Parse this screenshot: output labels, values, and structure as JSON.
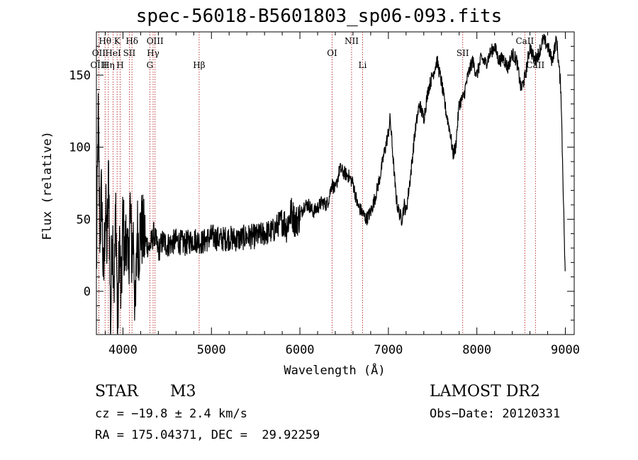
{
  "chart_data": {
    "type": "line",
    "title": "spec-56018-B5601803_sp06-093.fits",
    "xlabel": "Wavelength (Å)",
    "ylabel": "Flux (relative)",
    "xlim": [
      3700,
      9100
    ],
    "ylim": [
      -30,
      180
    ],
    "x_ticks": [
      4000,
      5000,
      6000,
      7000,
      8000,
      9000
    ],
    "y_ticks": [
      0,
      50,
      100,
      150
    ],
    "grid": false,
    "series": [
      {
        "x": [
          3700,
          3720,
          3740,
          3760,
          3780,
          3800,
          3820,
          3840,
          3860,
          3880,
          3900,
          3920,
          3940,
          3960,
          3980,
          4000,
          4020,
          4040,
          4060,
          4080,
          4100,
          4120,
          4140,
          4160,
          4180,
          4200,
          4250,
          4300,
          4350,
          4400,
          4450,
          4500,
          4600,
          4700,
          4800,
          4900,
          5000,
          5100,
          5200,
          5300,
          5400,
          5500,
          5600,
          5700,
          5800,
          5850,
          5900,
          5950,
          6000,
          6050,
          6100,
          6150,
          6200,
          6250,
          6300,
          6330,
          6360,
          6400,
          6450,
          6500,
          6550,
          6600,
          6650,
          6700,
          6750,
          6800,
          6850,
          6900,
          6950,
          7000,
          7020,
          7050,
          7080,
          7100,
          7120,
          7150,
          7180,
          7200,
          7250,
          7300,
          7350,
          7400,
          7450,
          7500,
          7550,
          7600,
          7650,
          7700,
          7730,
          7760,
          7800,
          7850,
          7900,
          7950,
          8000,
          8050,
          8100,
          8150,
          8200,
          8250,
          8300,
          8350,
          8400,
          8450,
          8500,
          8550,
          8600,
          8650,
          8700,
          8750,
          8800,
          8850,
          8900,
          8950,
          8980,
          9000
        ],
        "y": [
          10,
          120,
          40,
          70,
          0,
          60,
          30,
          85,
          -30,
          50,
          5,
          60,
          -30,
          40,
          -10,
          55,
          20,
          45,
          10,
          60,
          25,
          40,
          -25,
          45,
          30,
          45,
          35,
          30,
          40,
          28,
          35,
          32,
          35,
          33,
          36,
          34,
          38,
          36,
          37,
          36,
          38,
          38,
          40,
          42,
          50,
          45,
          55,
          48,
          52,
          60,
          60,
          55,
          58,
          62,
          60,
          65,
          75,
          70,
          85,
          82,
          80,
          75,
          60,
          55,
          50,
          55,
          65,
          78,
          95,
          110,
          120,
          95,
          70,
          60,
          55,
          50,
          60,
          55,
          80,
          110,
          130,
          120,
          140,
          150,
          160,
          145,
          125,
          110,
          95,
          100,
          130,
          135,
          150,
          160,
          150,
          162,
          158,
          165,
          170,
          160,
          162,
          155,
          165,
          160,
          140,
          150,
          170,
          160,
          165,
          175,
          170,
          160,
          175,
          140,
          60,
          5
        ]
      }
    ],
    "annotations": [
      {
        "label": "Hθ",
        "x": 3798,
        "row": 1
      },
      {
        "label": "OII",
        "x": 3727,
        "row": 2
      },
      {
        "label": "OIII",
        "x": 3727,
        "row": 3
      },
      {
        "label": "K",
        "x": 3934,
        "row": 1
      },
      {
        "label": "HeI",
        "x": 3889,
        "row": 2
      },
      {
        "label": "Hη",
        "x": 3835,
        "row": 3
      },
      {
        "label": "Hδ",
        "x": 4102,
        "row": 1
      },
      {
        "label": "SII",
        "x": 4072,
        "row": 2
      },
      {
        "label": "H",
        "x": 3968,
        "row": 3
      },
      {
        "label": "OIII",
        "x": 4363,
        "row": 1
      },
      {
        "label": "Hγ",
        "x": 4341,
        "row": 2
      },
      {
        "label": "G",
        "x": 4304,
        "row": 3
      },
      {
        "label": "Hβ",
        "x": 4861,
        "row": 3
      },
      {
        "label": "OI",
        "x": 6364,
        "row": 2
      },
      {
        "label": "NII",
        "x": 6584,
        "row": 1
      },
      {
        "label": "Li",
        "x": 6708,
        "row": 3
      },
      {
        "label": "SII",
        "x": 7840,
        "row": 2
      },
      {
        "label": "CaII",
        "x": 8542,
        "row": 1
      },
      {
        "label": "CaII",
        "x": 8662,
        "row": 3
      }
    ]
  },
  "info": {
    "object_type": "STAR",
    "subclass": "M3",
    "survey": "LAMOST DR2",
    "cz": "cz = −19.8 ± 2.4 km/s",
    "obs_date": "Obs−Date: 20120331",
    "coords": "RA = 175.04371, DEC =  29.92259"
  }
}
